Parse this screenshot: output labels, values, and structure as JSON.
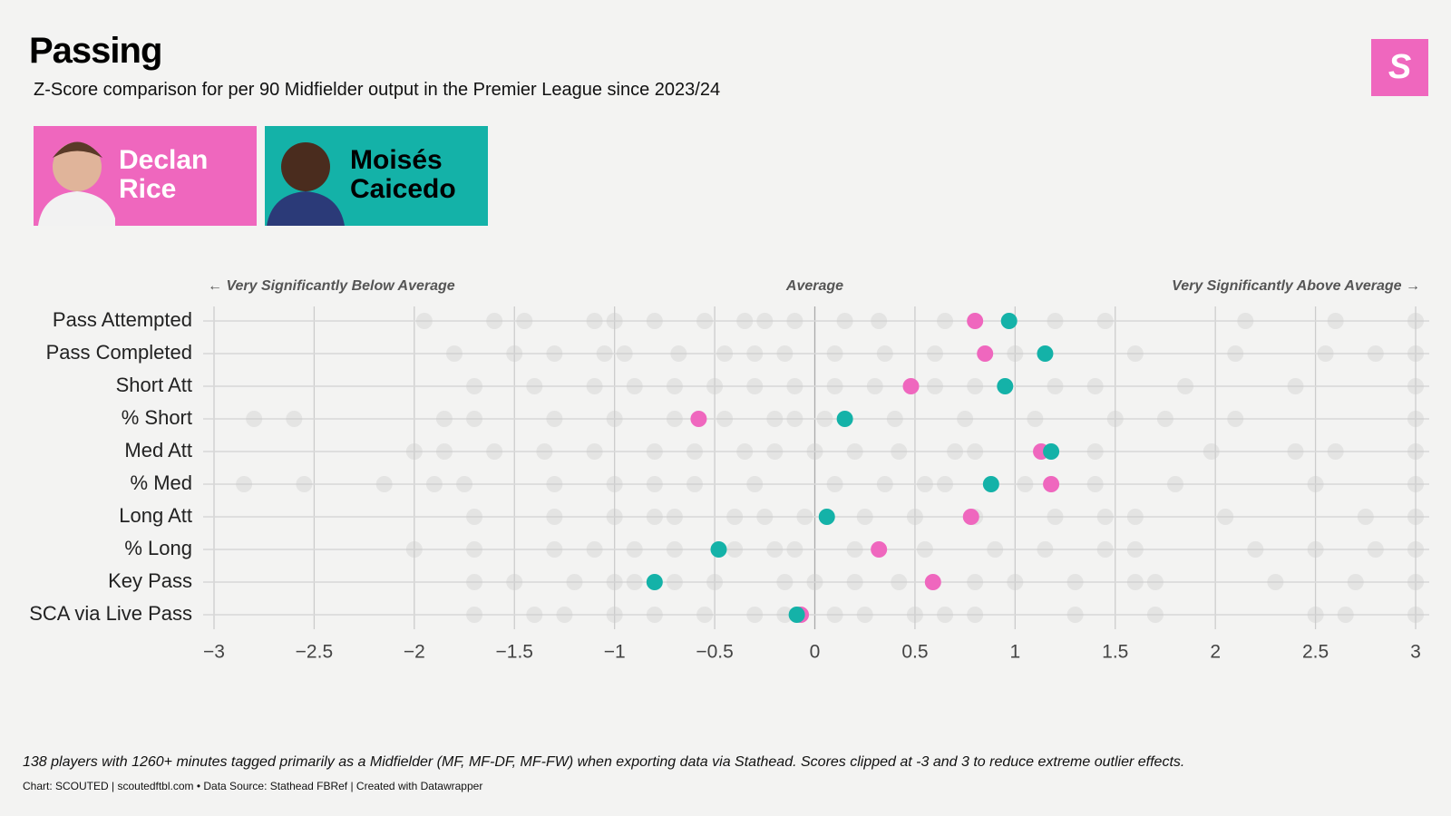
{
  "chart_data": {
    "type": "dot",
    "title": "Passing",
    "subtitle": "Z-Score comparison for per 90 Midfielder output in the Premier League since 2023/24",
    "annotations": {
      "left": "← Very Significantly Below Average",
      "center": "Average",
      "right": "Very Significantly Above Average →"
    },
    "categories": [
      "Pass Attempted",
      "Pass Completed",
      "Short Att",
      "% Short",
      "Med Att",
      "% Med",
      "Long Att",
      "% Long",
      "Key Pass",
      "SCA via Live Pass"
    ],
    "series": [
      {
        "name": "Declan Rice",
        "color": "#ef67be",
        "values": [
          0.8,
          0.85,
          0.48,
          -0.58,
          1.13,
          1.18,
          0.78,
          0.32,
          0.59,
          -0.07
        ]
      },
      {
        "name": "Moisés Caicedo",
        "color": "#14b2a8",
        "values": [
          0.97,
          1.15,
          0.95,
          0.15,
          1.18,
          0.88,
          0.06,
          -0.48,
          -0.8,
          -0.09
        ]
      }
    ],
    "other_players": [
      [
        -1.95,
        -1.6,
        -1.45,
        -1.1,
        -1.0,
        -0.8,
        -0.55,
        -0.35,
        -0.25,
        -0.1,
        0.15,
        0.32,
        0.65,
        1.2,
        1.45,
        2.15,
        2.6,
        3
      ],
      [
        -1.8,
        -1.5,
        -1.3,
        -1.05,
        -0.95,
        -0.68,
        -0.45,
        -0.3,
        -0.15,
        0.1,
        0.35,
        0.6,
        1.0,
        1.6,
        2.1,
        2.55,
        2.8,
        3
      ],
      [
        -1.7,
        -1.4,
        -1.1,
        -0.9,
        -0.7,
        -0.5,
        -0.3,
        -0.1,
        0.1,
        0.3,
        0.6,
        0.8,
        1.2,
        1.4,
        1.85,
        2.4,
        3
      ],
      [
        -2.8,
        -2.6,
        -1.85,
        -1.7,
        -1.3,
        -1.0,
        -0.7,
        -0.45,
        -0.2,
        -0.1,
        0.05,
        0.4,
        0.75,
        1.1,
        1.5,
        1.75,
        2.1,
        3
      ],
      [
        -2.0,
        -1.85,
        -1.6,
        -1.35,
        -1.1,
        -0.8,
        -0.6,
        -0.35,
        -0.2,
        0.0,
        0.2,
        0.42,
        0.7,
        0.8,
        1.4,
        1.98,
        2.4,
        2.6,
        3
      ],
      [
        -2.85,
        -2.55,
        -2.15,
        -1.9,
        -1.75,
        -1.3,
        -1.0,
        -0.8,
        -0.6,
        -0.3,
        0.1,
        0.35,
        0.55,
        0.65,
        1.05,
        1.4,
        1.8,
        2.5,
        3
      ],
      [
        -1.7,
        -1.3,
        -1.0,
        -0.8,
        -0.7,
        -0.4,
        -0.25,
        -0.05,
        0.25,
        0.5,
        0.8,
        1.2,
        1.45,
        1.6,
        2.05,
        2.75,
        3
      ],
      [
        -2.0,
        -1.7,
        -1.3,
        -1.1,
        -0.9,
        -0.7,
        -0.4,
        -0.2,
        -0.1,
        0.2,
        0.55,
        0.9,
        1.15,
        1.45,
        1.6,
        2.2,
        2.5,
        2.8,
        3
      ],
      [
        -1.7,
        -1.5,
        -1.2,
        -1.0,
        -0.9,
        -0.7,
        -0.5,
        -0.15,
        0.0,
        0.2,
        0.42,
        0.8,
        1.0,
        1.3,
        1.6,
        1.7,
        2.3,
        2.7,
        3
      ],
      [
        -1.7,
        -1.4,
        -1.25,
        -1.0,
        -0.8,
        -0.55,
        -0.3,
        -0.15,
        0.1,
        0.25,
        0.5,
        0.65,
        0.8,
        1.3,
        1.7,
        2.5,
        2.65,
        3
      ]
    ],
    "xlim": [
      -3,
      3
    ],
    "xticks": [
      {
        "value": -3,
        "label": "−3"
      },
      {
        "value": -2.5,
        "label": "−2.5"
      },
      {
        "value": -2,
        "label": "−2"
      },
      {
        "value": -1.5,
        "label": "−1.5"
      },
      {
        "value": -1,
        "label": "−1"
      },
      {
        "value": -0.5,
        "label": "−0.5"
      },
      0,
      0.5,
      1,
      1.5,
      2,
      2.5,
      3
    ],
    "grid": true,
    "logo": "S",
    "note": "138 players with 1260+ minutes tagged primarily as a Midfielder (MF, MF-DF, MF-FW) when exporting data via Stathead. Scores clipped at -3 and 3 to reduce extreme outlier effects.",
    "credit": "Chart: SCOUTED | scoutedftbl.com • Data Source: Stathead FBRef | Created with Datawrapper"
  }
}
